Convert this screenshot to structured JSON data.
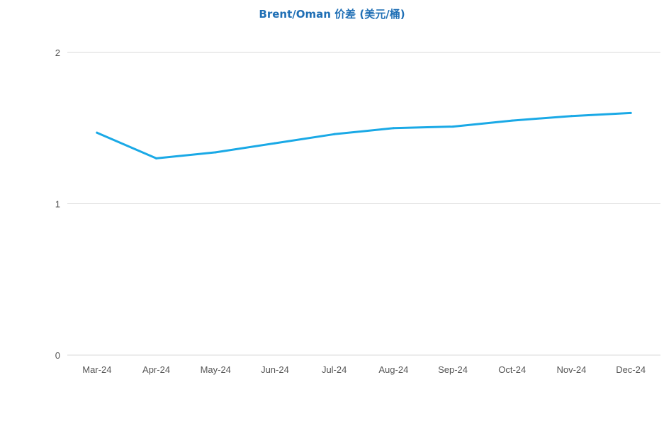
{
  "chart_data": {
    "type": "line",
    "title": "Brent/Oman 价差 (美元/桶)",
    "categories": [
      "Mar-24",
      "Apr-24",
      "May-24",
      "Jun-24",
      "Jul-24",
      "Aug-24",
      "Sep-24",
      "Oct-24",
      "Nov-24",
      "Dec-24"
    ],
    "series": [
      {
        "values": [
          1.47,
          1.3,
          1.34,
          1.4,
          1.46,
          1.5,
          1.51,
          1.55,
          1.58,
          1.6
        ],
        "color": "#1aa9e6"
      }
    ],
    "ylim": [
      0,
      2
    ],
    "yticks": [
      "0",
      "1",
      "2"
    ],
    "xlabel": "",
    "ylabel": "",
    "grid": true,
    "grid_color": "#d9d9d9",
    "title_color": "#1f6fb5"
  }
}
